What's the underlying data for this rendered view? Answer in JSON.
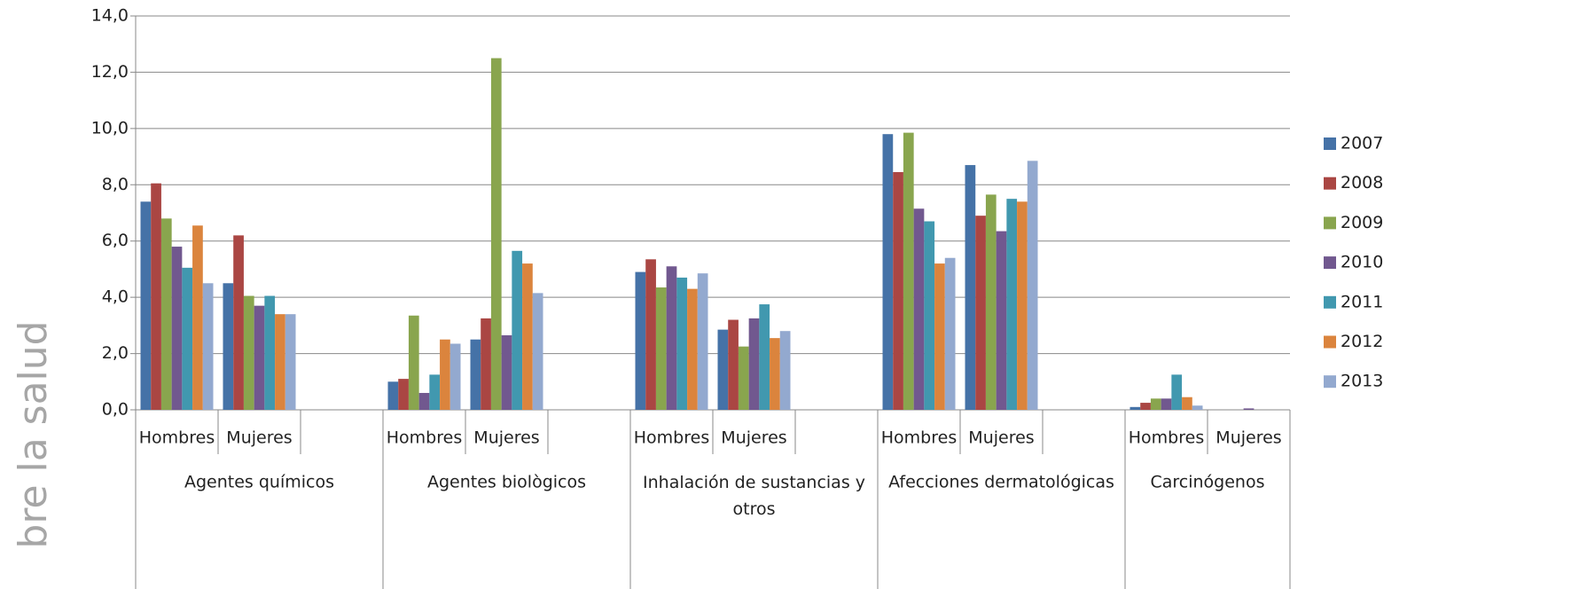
{
  "chart_data": {
    "type": "bar",
    "y_label": "bre la salud",
    "groups": [
      "Agentes químicos",
      "Agentes biològicos",
      "Inhalación de sustancias y otros",
      "Afecciones dermatológicas",
      "Carcinógenos"
    ],
    "categories": [
      "Hombres",
      "Mujeres",
      null,
      "Hombres",
      "Mujeres",
      null,
      "Hombres",
      "Mujeres",
      null,
      "Hombres",
      "Mujeres",
      null,
      "Hombres",
      "Mujeres"
    ],
    "series": [
      {
        "name": "2007",
        "color": "#4572a7",
        "values": [
          7.4,
          4.5,
          null,
          1.0,
          2.5,
          null,
          4.9,
          2.85,
          null,
          9.8,
          8.7,
          null,
          0.1,
          0
        ]
      },
      {
        "name": "2008",
        "color": "#aa4643",
        "values": [
          8.05,
          6.2,
          null,
          1.1,
          3.25,
          null,
          5.35,
          3.2,
          null,
          8.45,
          6.9,
          null,
          0.25,
          0
        ]
      },
      {
        "name": "2009",
        "color": "#89a54e",
        "values": [
          6.8,
          4.05,
          null,
          3.35,
          12.5,
          null,
          4.35,
          2.25,
          null,
          9.85,
          7.65,
          null,
          0.4,
          0
        ]
      },
      {
        "name": "2010",
        "color": "#71588f",
        "values": [
          5.8,
          3.7,
          null,
          0.6,
          2.65,
          null,
          5.1,
          3.25,
          null,
          7.15,
          6.35,
          null,
          0.4,
          0.05
        ]
      },
      {
        "name": "2011",
        "color": "#4198af",
        "values": [
          5.05,
          4.05,
          null,
          1.25,
          5.65,
          null,
          4.7,
          3.75,
          null,
          6.7,
          7.5,
          null,
          1.25,
          0
        ]
      },
      {
        "name": "2012",
        "color": "#db843d",
        "values": [
          6.55,
          3.4,
          null,
          2.5,
          5.2,
          null,
          4.3,
          2.55,
          null,
          5.2,
          7.4,
          null,
          0.45,
          0
        ]
      },
      {
        "name": "2013",
        "color": "#93a9cf",
        "values": [
          4.5,
          3.4,
          null,
          2.35,
          4.15,
          null,
          4.85,
          2.8,
          null,
          5.4,
          8.85,
          null,
          0.15,
          0
        ]
      }
    ],
    "ylim": [
      0,
      14
    ],
    "yticks": [
      {
        "value": 0,
        "label": "0,0"
      },
      {
        "value": 2,
        "label": "2,0"
      },
      {
        "value": 4,
        "label": "4,0"
      },
      {
        "value": 6,
        "label": "6,0"
      },
      {
        "value": 8,
        "label": "8,0"
      },
      {
        "value": 10,
        "label": "10,0"
      },
      {
        "value": 12,
        "label": "12,0"
      },
      {
        "value": 14,
        "label": "14,0"
      }
    ],
    "grid": true,
    "legend": "right"
  }
}
